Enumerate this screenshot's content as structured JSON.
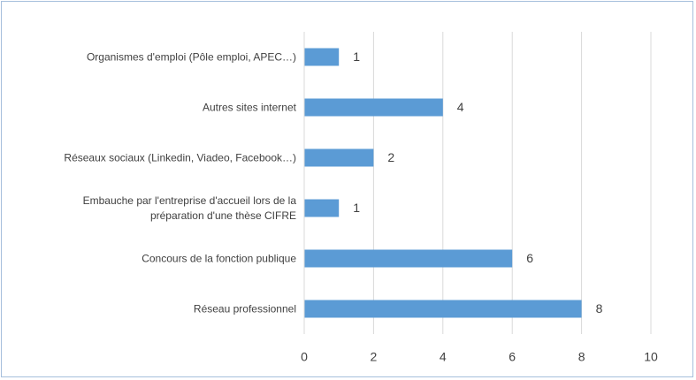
{
  "chart_data": {
    "type": "barh",
    "categories": [
      "Organismes d'emploi (Pôle emploi, APEC…)",
      "Autres sites internet",
      "Réseaux sociaux (Linkedin, Viadeo, Facebook…)",
      "Embauche par l'entreprise d'accueil lors de la\npréparation d'une thèse CIFRE",
      "Concours de la fonction publique",
      "Réseau professionnel"
    ],
    "values": [
      1,
      4,
      2,
      1,
      6,
      8
    ],
    "color": "#5b9bd5",
    "xlim": [
      0,
      10
    ],
    "xticks": [
      0,
      2,
      4,
      6,
      8,
      10
    ],
    "grid": true
  }
}
